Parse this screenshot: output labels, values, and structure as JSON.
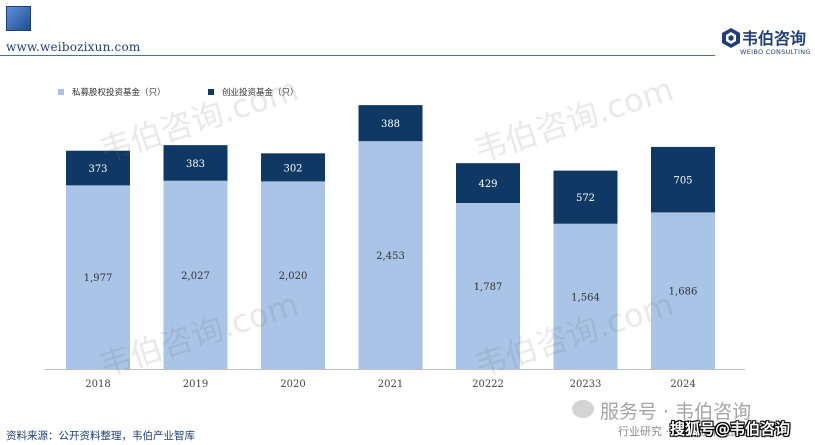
{
  "header": {
    "site_url": "www.weibozixun.com",
    "brand_name": "韦伯咨询",
    "brand_sub": "WEIBO CONSULTING"
  },
  "watermark": "韦伯咨询.com",
  "chart_data": {
    "type": "bar",
    "stacked": true,
    "categories": [
      "2018",
      "2019",
      "2020",
      "2021",
      "20222",
      "20233",
      "2024"
    ],
    "series": [
      {
        "name": "私募股权投资基金（只）",
        "values": [
          1977,
          2027,
          2020,
          2453,
          1787,
          1564,
          1686
        ],
        "color": "#a9c4e6",
        "labels": [
          "1,977",
          "2,027",
          "2,020",
          "2,453",
          "1,787",
          "1,564",
          "1,686"
        ]
      },
      {
        "name": "创业投资基金（只）",
        "values": [
          373,
          383,
          302,
          388,
          429,
          572,
          705
        ],
        "color": "#0f3864",
        "labels": [
          "373",
          "383",
          "302",
          "388",
          "429",
          "572",
          "705"
        ]
      }
    ],
    "ylim": [
      0,
      2950
    ],
    "legend": "top-left",
    "grid": false
  },
  "footer": {
    "source": "资料来源：公开资料整理，韦伯产业智库",
    "wechat": "服务号 · 韦伯咨询",
    "industry": "行业研究 · 专项调研 · 战略规划",
    "sohu": "搜狐号@韦伯咨询"
  }
}
